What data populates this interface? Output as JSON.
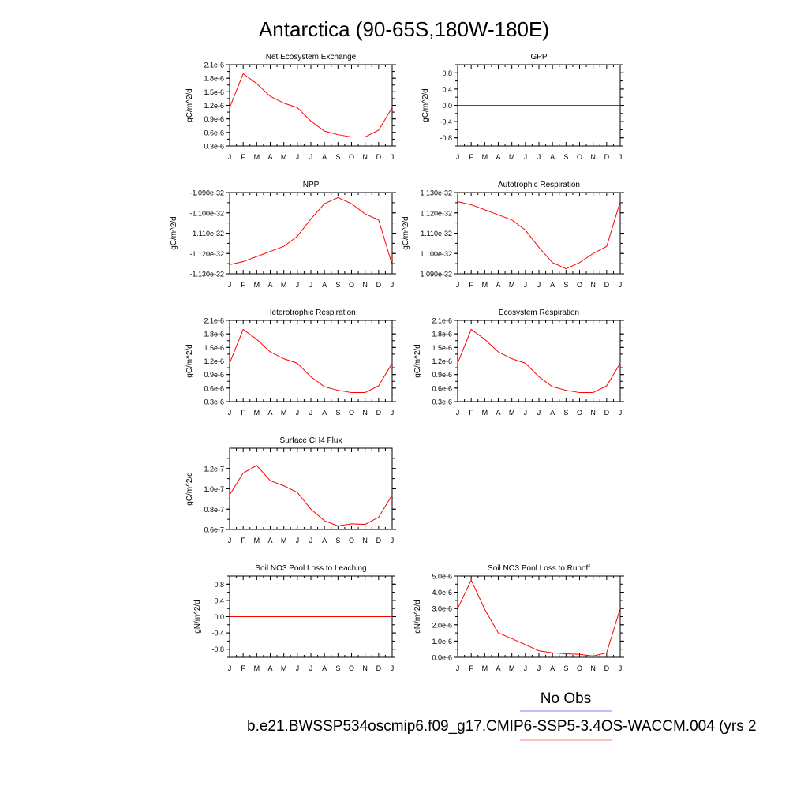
{
  "page_title": "Antarctica (90-65S,180W-180E)",
  "legend": {
    "obs_label": "No Obs",
    "obs_color": "#7f7fff",
    "model_label": "b.e21.BWSSP534oscmip6.f09_g17.CMIP6-SSP5-3.4OS-WACCM.004 (yrs 2",
    "model_color": "#ff7f7f"
  },
  "line_color": "#ff0000",
  "chart_data": [
    {
      "type": "line",
      "title": "Net Ecosystem Exchange",
      "ylabel": "gC/m^2/d",
      "ylim": [
        3e-07,
        2.1e-06
      ],
      "yticks": [
        3e-07,
        6e-07,
        9e-07,
        1.2e-06,
        1.5e-06,
        1.8e-06,
        2.1e-06
      ],
      "yticklabels": [
        "0.3e-6",
        "0.6e-6",
        "0.9e-6",
        "1.2e-6",
        "1.5e-6",
        "1.8e-6",
        "2.1e-6"
      ],
      "xticklabels": [
        "J",
        "F",
        "M",
        "A",
        "M",
        "J",
        "J",
        "A",
        "S",
        "O",
        "N",
        "D",
        "J"
      ],
      "values": [
        1.15e-06,
        1.9e-06,
        1.68e-06,
        1.4e-06,
        1.25e-06,
        1.15e-06,
        8.5e-07,
        6.3e-07,
        5.5e-07,
        5e-07,
        5e-07,
        6.5e-07,
        1.15e-06
      ]
    },
    {
      "type": "line",
      "title": "GPP",
      "ylabel": "gC/m^2/d",
      "ylim": [
        -1.0,
        1.0
      ],
      "yticks": [
        -0.8,
        -0.4,
        0.0,
        0.4,
        0.8
      ],
      "yticklabels": [
        "-0.8",
        "-0.4",
        "0.0",
        "0.4",
        "0.8"
      ],
      "xticklabels": [
        "J",
        "F",
        "M",
        "A",
        "M",
        "J",
        "J",
        "A",
        "S",
        "O",
        "N",
        "D",
        "J"
      ],
      "values": [
        0,
        0,
        0,
        0,
        0,
        0,
        0,
        0,
        0,
        0,
        0,
        0,
        0
      ]
    },
    {
      "type": "line",
      "title": "NPP",
      "ylabel": "gC/m^2/d",
      "ylim": [
        -1.13e-32,
        -1.09e-32
      ],
      "yticks": [
        -1.13e-32,
        -1.12e-32,
        -1.11e-32,
        -1.1e-32,
        -1.09e-32
      ],
      "yticklabels": [
        "-1.130e-32",
        "-1.120e-32",
        "-1.110e-32",
        "-1.100e-32",
        "-1.090e-32"
      ],
      "xticklabels": [
        "J",
        "F",
        "M",
        "A",
        "M",
        "J",
        "J",
        "A",
        "S",
        "O",
        "N",
        "D",
        "J"
      ],
      "values": [
        -1.1255e-32,
        -1.124e-32,
        -1.1215e-32,
        -1.119e-32,
        -1.1165e-32,
        -1.1115e-32,
        -1.103e-32,
        -1.0955e-32,
        -1.0925e-32,
        -1.0955e-32,
        -1.1005e-32,
        -1.1035e-32,
        -1.1255e-32
      ]
    },
    {
      "type": "line",
      "title": "Autotrophic Respiration",
      "ylabel": "gC/m^2/d",
      "ylim": [
        1.09e-32,
        1.13e-32
      ],
      "yticks": [
        1.09e-32,
        1.1e-32,
        1.11e-32,
        1.12e-32,
        1.13e-32
      ],
      "yticklabels": [
        "1.090e-32",
        "1.100e-32",
        "1.110e-32",
        "1.120e-32",
        "1.130e-32"
      ],
      "xticklabels": [
        "J",
        "F",
        "M",
        "A",
        "M",
        "J",
        "J",
        "A",
        "S",
        "O",
        "N",
        "D",
        "J"
      ],
      "values": [
        1.1255e-32,
        1.124e-32,
        1.1215e-32,
        1.119e-32,
        1.1165e-32,
        1.1115e-32,
        1.103e-32,
        1.0955e-32,
        1.0925e-32,
        1.0955e-32,
        1.1e-32,
        1.1035e-32,
        1.1255e-32
      ]
    },
    {
      "type": "line",
      "title": "Heterotrophic Respiration",
      "ylabel": "gC/m^2/d",
      "ylim": [
        3e-07,
        2.1e-06
      ],
      "yticks": [
        3e-07,
        6e-07,
        9e-07,
        1.2e-06,
        1.5e-06,
        1.8e-06,
        2.1e-06
      ],
      "yticklabels": [
        "0.3e-6",
        "0.6e-6",
        "0.9e-6",
        "1.2e-6",
        "1.5e-6",
        "1.8e-6",
        "2.1e-6"
      ],
      "xticklabels": [
        "J",
        "F",
        "M",
        "A",
        "M",
        "J",
        "J",
        "A",
        "S",
        "O",
        "N",
        "D",
        "J"
      ],
      "values": [
        1.15e-06,
        1.9e-06,
        1.68e-06,
        1.4e-06,
        1.25e-06,
        1.15e-06,
        8.5e-07,
        6.3e-07,
        5.5e-07,
        5e-07,
        5e-07,
        6.5e-07,
        1.15e-06
      ]
    },
    {
      "type": "line",
      "title": "Ecosystem Respiration",
      "ylabel": "gC/m^2/d",
      "ylim": [
        3e-07,
        2.1e-06
      ],
      "yticks": [
        3e-07,
        6e-07,
        9e-07,
        1.2e-06,
        1.5e-06,
        1.8e-06,
        2.1e-06
      ],
      "yticklabels": [
        "0.3e-6",
        "0.6e-6",
        "0.9e-6",
        "1.2e-6",
        "1.5e-6",
        "1.8e-6",
        "2.1e-6"
      ],
      "xticklabels": [
        "J",
        "F",
        "M",
        "A",
        "M",
        "J",
        "J",
        "A",
        "S",
        "O",
        "N",
        "D",
        "J"
      ],
      "values": [
        1.15e-06,
        1.9e-06,
        1.68e-06,
        1.4e-06,
        1.25e-06,
        1.15e-06,
        8.5e-07,
        6.3e-07,
        5.5e-07,
        5e-07,
        5e-07,
        6.5e-07,
        1.15e-06
      ]
    },
    {
      "type": "line",
      "title": "Surface CH4 Flux",
      "ylabel": "gC/m^2/d",
      "ylim": [
        6e-08,
        1.4e-07
      ],
      "yticks": [
        6e-08,
        8e-08,
        1e-07,
        1.2e-07
      ],
      "yticklabels": [
        "0.6e-7",
        "0.8e-7",
        "1.0e-7",
        "1.2e-7"
      ],
      "xticklabels": [
        "J",
        "F",
        "M",
        "A",
        "M",
        "J",
        "J",
        "A",
        "S",
        "O",
        "N",
        "D",
        "J"
      ],
      "values": [
        9.4e-08,
        1.155e-07,
        1.23e-07,
        1.08e-07,
        1.03e-07,
        9.65e-08,
        8e-08,
        6.85e-08,
        6.35e-08,
        6.55e-08,
        6.5e-08,
        7.2e-08,
        9.4e-08
      ]
    },
    {
      "type": "line",
      "title": "Soil NO3 Pool Loss to Leaching",
      "ylabel": "gN/m^2/d",
      "ylim": [
        -1.0,
        1.0
      ],
      "yticks": [
        -0.8,
        -0.4,
        0.0,
        0.4,
        0.8
      ],
      "yticklabels": [
        "-0.8",
        "-0.4",
        "0.0",
        "0.4",
        "0.8"
      ],
      "xticklabels": [
        "J",
        "F",
        "M",
        "A",
        "M",
        "J",
        "J",
        "A",
        "S",
        "O",
        "N",
        "D",
        "J"
      ],
      "values": [
        0,
        0,
        0,
        0,
        0,
        0,
        0,
        0,
        0,
        0,
        0,
        0,
        0
      ]
    },
    {
      "type": "line",
      "title": "Soil NO3 Pool Loss to Runoff",
      "ylabel": "gN/m^2/d",
      "ylim": [
        0.0,
        5e-06
      ],
      "yticks": [
        0.0,
        1e-06,
        2e-06,
        3e-06,
        4e-06,
        5e-06
      ],
      "yticklabels": [
        "0.0e-6",
        "1.0e-6",
        "2.0e-6",
        "3.0e-6",
        "4.0e-6",
        "5.0e-6"
      ],
      "xticklabels": [
        "J",
        "F",
        "M",
        "A",
        "M",
        "J",
        "J",
        "A",
        "S",
        "O",
        "N",
        "D",
        "J"
      ],
      "values": [
        3e-06,
        4.75e-06,
        2.95e-06,
        1.5e-06,
        1.15e-06,
        7.8e-07,
        4e-07,
        2.8e-07,
        2.2e-07,
        1.8e-07,
        8e-08,
        2.8e-07,
        3e-06
      ]
    }
  ]
}
